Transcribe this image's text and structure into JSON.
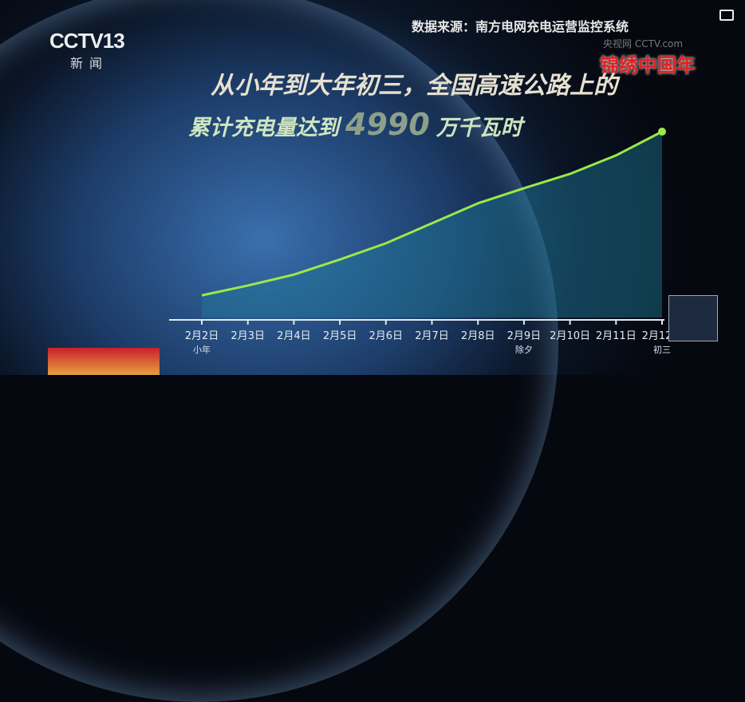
{
  "broadcast": {
    "channel_logo": "CCTV13",
    "channel_name": "新闻",
    "watermark": "央视网 CCTV.com",
    "festive_logo": "锦绣中国年"
  },
  "source": "数据来源：南方电网充电运营监控系统",
  "headline": {
    "line1": "从小年到大年初三，全国高速公路上的",
    "line2_prefix": "累计充电量达到",
    "value": "4990",
    "unit": "万千瓦时"
  },
  "chart_data": {
    "type": "area",
    "categories": [
      "2月2日",
      "2月3日",
      "2月4日",
      "2月5日",
      "2月6日",
      "2月7日",
      "2月8日",
      "2月9日",
      "2月10日",
      "2月11日",
      "2月12日"
    ],
    "sublabels": [
      "小年",
      "",
      "",
      "",
      "",
      "",
      "",
      "除夕",
      "",
      "",
      "初三"
    ],
    "series": [
      {
        "values": [
          650,
          910,
          1200,
          1600,
          2030,
          2560,
          3090,
          3490,
          3870,
          4360,
          4990
        ]
      }
    ],
    "ylim": [
      0,
      4990
    ],
    "unit": "万千瓦时",
    "grid": false,
    "colors": {
      "line": "#9be84a",
      "fill": "#1f7a9a",
      "axis": "#dfe8f0"
    }
  }
}
